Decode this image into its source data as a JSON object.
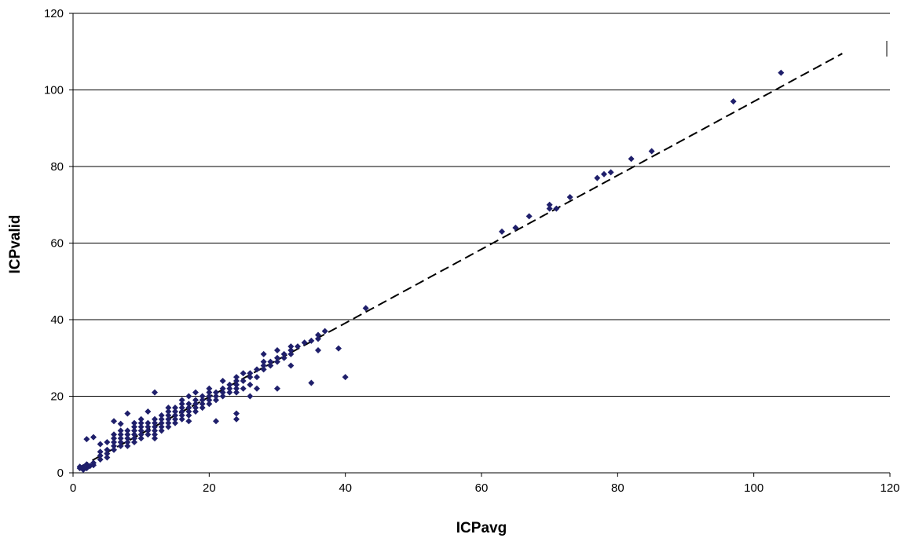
{
  "chart_data": {
    "type": "scatter",
    "title": "",
    "xlabel": "ICPavg",
    "ylabel": "ICPvalid",
    "xlim": [
      0,
      120
    ],
    "ylim": [
      0,
      120
    ],
    "x_ticks": [
      "0",
      "20",
      "40",
      "60",
      "80",
      "100",
      "120"
    ],
    "y_ticks": [
      "0",
      "20",
      "40",
      "60",
      "80",
      "100",
      "120"
    ],
    "grid": "horizontal",
    "legend": "none",
    "marker_color": "#1f1f6b",
    "trendline": {
      "style": "dashed",
      "color": "#000000",
      "x": [
        1,
        113
      ],
      "y": [
        1.5,
        109.5
      ]
    },
    "series": [
      {
        "points": [
          [
            1,
            1.2
          ],
          [
            1,
            1.6
          ],
          [
            1.5,
            0.8
          ],
          [
            1.5,
            1.5
          ],
          [
            2,
            1.2
          ],
          [
            2,
            2.2
          ],
          [
            2,
            8.8
          ],
          [
            2.5,
            1.8
          ],
          [
            3,
            2
          ],
          [
            3,
            2.6
          ],
          [
            3,
            9.3
          ],
          [
            4,
            3.5
          ],
          [
            4,
            4.5
          ],
          [
            4,
            5.5
          ],
          [
            4,
            7.5
          ],
          [
            5,
            4
          ],
          [
            5,
            5
          ],
          [
            5,
            6
          ],
          [
            5,
            8
          ],
          [
            6,
            6
          ],
          [
            6,
            7
          ],
          [
            6,
            8
          ],
          [
            6,
            9
          ],
          [
            6,
            10
          ],
          [
            6,
            13.5
          ],
          [
            7,
            7
          ],
          [
            7,
            8
          ],
          [
            7,
            9
          ],
          [
            7,
            10
          ],
          [
            7,
            11
          ],
          [
            7,
            12.8
          ],
          [
            8,
            7
          ],
          [
            8,
            8
          ],
          [
            8,
            9
          ],
          [
            8,
            10
          ],
          [
            8,
            11
          ],
          [
            8,
            15.5
          ],
          [
            9,
            8
          ],
          [
            9,
            9
          ],
          [
            9,
            10
          ],
          [
            9,
            11
          ],
          [
            9,
            12
          ],
          [
            9,
            13
          ],
          [
            10,
            9
          ],
          [
            10,
            10
          ],
          [
            10,
            11
          ],
          [
            10,
            12
          ],
          [
            10,
            13
          ],
          [
            10,
            14
          ],
          [
            11,
            10
          ],
          [
            11,
            11
          ],
          [
            11,
            12
          ],
          [
            11,
            13
          ],
          [
            11,
            16
          ],
          [
            12,
            9
          ],
          [
            12,
            10
          ],
          [
            12,
            11
          ],
          [
            12,
            12
          ],
          [
            12,
            13
          ],
          [
            12,
            14
          ],
          [
            12,
            21
          ],
          [
            13,
            11
          ],
          [
            13,
            12
          ],
          [
            13,
            13
          ],
          [
            13,
            14
          ],
          [
            13,
            15
          ],
          [
            14,
            12
          ],
          [
            14,
            13
          ],
          [
            14,
            14
          ],
          [
            14,
            15
          ],
          [
            14,
            16
          ],
          [
            14,
            17
          ],
          [
            15,
            13
          ],
          [
            15,
            14
          ],
          [
            15,
            15
          ],
          [
            15,
            16
          ],
          [
            15,
            17
          ],
          [
            16,
            14
          ],
          [
            16,
            15
          ],
          [
            16,
            16
          ],
          [
            16,
            17
          ],
          [
            16,
            18
          ],
          [
            16,
            19
          ],
          [
            17,
            15
          ],
          [
            17,
            16
          ],
          [
            17,
            17
          ],
          [
            17,
            18
          ],
          [
            17,
            20
          ],
          [
            17,
            13.5
          ],
          [
            18,
            16
          ],
          [
            18,
            17
          ],
          [
            18,
            18
          ],
          [
            18,
            19
          ],
          [
            18,
            21
          ],
          [
            19,
            17
          ],
          [
            19,
            18
          ],
          [
            19,
            19
          ],
          [
            19,
            20
          ],
          [
            20,
            18
          ],
          [
            20,
            19
          ],
          [
            20,
            20
          ],
          [
            20,
            21
          ],
          [
            20,
            22
          ],
          [
            21,
            19
          ],
          [
            21,
            20
          ],
          [
            21,
            21
          ],
          [
            21,
            13.5
          ],
          [
            22,
            20
          ],
          [
            22,
            21
          ],
          [
            22,
            22
          ],
          [
            22,
            24
          ],
          [
            23,
            21
          ],
          [
            23,
            22
          ],
          [
            23,
            23
          ],
          [
            24,
            21
          ],
          [
            24,
            22
          ],
          [
            24,
            23
          ],
          [
            24,
            24
          ],
          [
            24,
            25
          ],
          [
            24,
            14
          ],
          [
            24,
            15.5
          ],
          [
            25,
            22
          ],
          [
            25,
            24
          ],
          [
            25,
            26
          ],
          [
            26,
            23
          ],
          [
            26,
            25
          ],
          [
            26,
            26
          ],
          [
            26,
            20
          ],
          [
            27,
            25
          ],
          [
            27,
            27
          ],
          [
            27,
            22
          ],
          [
            28,
            27
          ],
          [
            28,
            28
          ],
          [
            28,
            29
          ],
          [
            28,
            31
          ],
          [
            29,
            28
          ],
          [
            29,
            29
          ],
          [
            30,
            29
          ],
          [
            30,
            30
          ],
          [
            30,
            32
          ],
          [
            30,
            22
          ],
          [
            31,
            30
          ],
          [
            31,
            31
          ],
          [
            32,
            31
          ],
          [
            32,
            32
          ],
          [
            32,
            33
          ],
          [
            32,
            28
          ],
          [
            33,
            33
          ],
          [
            34,
            34
          ],
          [
            35,
            34.5
          ],
          [
            35,
            23.5
          ],
          [
            36,
            35
          ],
          [
            36,
            36
          ],
          [
            36,
            32
          ],
          [
            37,
            37
          ],
          [
            39,
            32.5
          ],
          [
            40,
            25
          ],
          [
            43,
            43
          ],
          [
            63,
            63
          ],
          [
            65,
            64
          ],
          [
            67,
            67
          ],
          [
            70,
            69
          ],
          [
            70,
            70
          ],
          [
            71,
            69
          ],
          [
            73,
            72
          ],
          [
            77,
            77
          ],
          [
            78,
            78
          ],
          [
            79,
            78.5
          ],
          [
            82,
            82
          ],
          [
            85,
            84
          ],
          [
            97,
            97
          ],
          [
            104,
            104.5
          ]
        ]
      }
    ]
  }
}
